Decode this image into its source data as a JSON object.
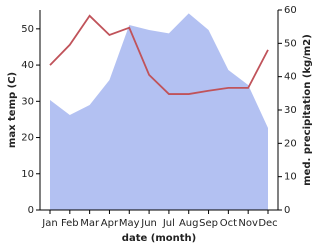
{
  "chart_data": {
    "type": "line",
    "x_label": "date (month)",
    "y_label": "max temp (C)",
    "y2_label": "med. precipitation (kg/m2)",
    "categories": [
      "Jan",
      "Feb",
      "Mar",
      "Apr",
      "May",
      "Jun",
      "Jul",
      "Aug",
      "Sep",
      "Oct",
      "Nov",
      "Dec"
    ],
    "series": [
      {
        "name": "max temp",
        "color": "#c0535a",
        "values": [
          40,
          45.6,
          53.6,
          48.3,
          50.3,
          37.3,
          32,
          32,
          32.9,
          33.7,
          33.7,
          44.2
        ]
      },
      {
        "name": "med. precipitation",
        "color": "#b3c1f2",
        "axis": "y2",
        "values": [
          33,
          28.5,
          31.5,
          39,
          55.5,
          54,
          53,
          59,
          54,
          42,
          37.5,
          24.6
        ]
      }
    ],
    "ylim": [
      0,
      55.2
    ],
    "yticks": [
      0,
      10,
      20,
      30,
      40,
      50
    ],
    "y2lim": [
      0,
      60
    ],
    "y2ticks": [
      0,
      10,
      20,
      30,
      40,
      50,
      60
    ]
  }
}
